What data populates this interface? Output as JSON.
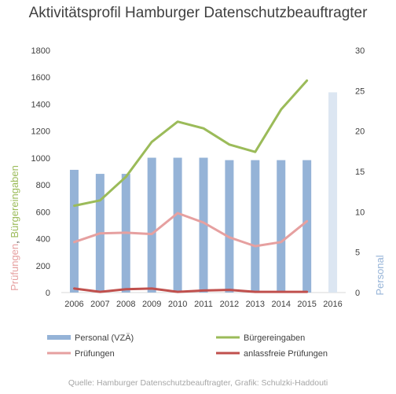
{
  "chart_data": {
    "type": "bar+line",
    "title": "Aktivitätsprofil Hamburger Datenschutzbeauftragter",
    "categories": [
      "2006",
      "2007",
      "2008",
      "2009",
      "2010",
      "2011",
      "2012",
      "2013",
      "2014",
      "2015",
      "2016"
    ],
    "ylabel_left_part1": "Prüfungen",
    "ylabel_left_sep": ", ",
    "ylabel_left_part2": "Bürgereingaben",
    "ylabel_right": "Personal",
    "ylim_left": [
      0,
      1800
    ],
    "ylim_right": [
      0,
      30
    ],
    "left_ticks": [
      "0",
      "200",
      "400",
      "600",
      "800",
      "1000",
      "1200",
      "1400",
      "1600",
      "1800"
    ],
    "right_ticks": [
      "0",
      "5",
      "10",
      "15",
      "20",
      "25",
      "30"
    ],
    "grid": false,
    "legend_position": "bottom",
    "series": [
      {
        "name": "Personal (VZÄ)",
        "kind": "bar",
        "axis": "right",
        "color": "#95b3d7",
        "values": [
          15.2,
          14.7,
          14.7,
          16.7,
          16.7,
          16.7,
          16.4,
          16.4,
          16.4,
          16.4,
          null
        ]
      },
      {
        "name": "Bürgereingaben",
        "kind": "line",
        "axis": "left",
        "color": "#9bbb59",
        "values": [
          645,
          685,
          860,
          1120,
          1270,
          1220,
          1100,
          1045,
          1360,
          1575,
          null
        ]
      },
      {
        "name": "Prüfungen",
        "kind": "line",
        "axis": "left",
        "color": "#e6a0a0",
        "values": [
          375,
          440,
          445,
          435,
          590,
          520,
          410,
          345,
          375,
          530,
          null
        ]
      },
      {
        "name": "anlassfreie Prüfungen",
        "kind": "line",
        "axis": "left",
        "color": "#c0504d",
        "values": [
          30,
          5,
          25,
          30,
          5,
          15,
          20,
          5,
          5,
          5,
          null
        ]
      }
    ],
    "extra_bar": {
      "category": "2016",
      "value": 24.8,
      "color": "#dce6f2"
    }
  },
  "source_text": "Quelle: Hamburger Datenschutzbeauftragter, Grafik: Schulzki-Haddouti"
}
